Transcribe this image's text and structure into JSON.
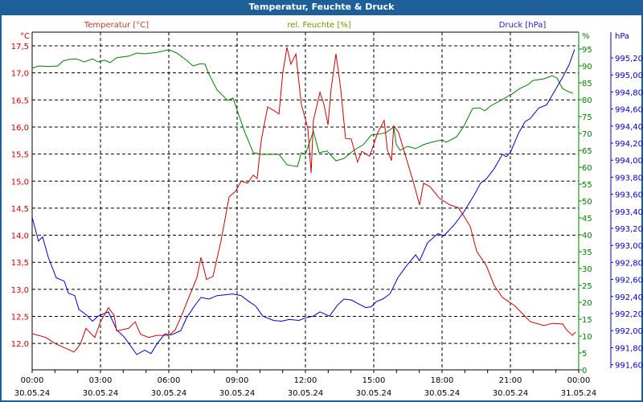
{
  "window": {
    "title": "Temperatur, Feuchte & Druck"
  },
  "colors": {
    "temperature": "#d00000",
    "humidity": "#008000",
    "pressure": "#0000d0",
    "titlebar": "#1f5f99"
  },
  "chart_data": {
    "type": "line",
    "title": "Temperatur, Feuchte & Druck",
    "xlabel": "",
    "x_unit": "hours since 30.05.24 00:00",
    "xlim": [
      0,
      24
    ],
    "x_ticks": [
      {
        "time": "00:00",
        "date": "30.05.24"
      },
      {
        "time": "03:00",
        "date": "30.05.24"
      },
      {
        "time": "06:00",
        "date": "30.05.24"
      },
      {
        "time": "09:00",
        "date": "30.05.24"
      },
      {
        "time": "12:00",
        "date": "30.05.24"
      },
      {
        "time": "15:00",
        "date": "30.05.24"
      },
      {
        "time": "18:00",
        "date": "30.05.24"
      },
      {
        "time": "21:00",
        "date": "30.05.24"
      },
      {
        "time": "00:00",
        "date": "31.05.24"
      }
    ],
    "grid": true,
    "axes": {
      "temperature": {
        "label": "Temperatur [°C]",
        "unit": "°C",
        "ylim": [
          11.75,
          17.75
        ],
        "ticks": [
          "17,5",
          "17,0",
          "16,5",
          "16,0",
          "15,5",
          "15,0",
          "14,5",
          "14,0",
          "13,5",
          "13,0",
          "12,5",
          "12,0"
        ]
      },
      "humidity": {
        "label": "rel. Feuchte [%]",
        "unit": "%",
        "ylim": [
          0,
          99
        ],
        "ticks": [
          "95",
          "90",
          "85",
          "80",
          "75",
          "70",
          "65",
          "60",
          "55",
          "50",
          "45",
          "40",
          "35",
          "30",
          "25",
          "20",
          "15",
          "10",
          "5",
          "0"
        ]
      },
      "pressure": {
        "label": "Druck [hPa]",
        "unit": "hPa",
        "ylim": [
          991.56,
          995.52
        ],
        "ticks": [
          "995,20",
          "995,00",
          "994,80",
          "994,60",
          "994,40",
          "994,20",
          "994,00",
          "993,80",
          "993,60",
          "993,40",
          "993,20",
          "993,00",
          "992,80",
          "992,60",
          "992,40",
          "992,20",
          "992,00",
          "991,80",
          "991,60"
        ]
      }
    },
    "series": [
      {
        "name": "Temperatur [°C]",
        "axis": "temperature",
        "points": [
          [
            0,
            12.18
          ],
          [
            0.6,
            12.11
          ],
          [
            1.0,
            12.0
          ],
          [
            1.84,
            11.84
          ],
          [
            2.12,
            11.99
          ],
          [
            2.36,
            12.28
          ],
          [
            2.75,
            12.11
          ],
          [
            3.0,
            12.4
          ],
          [
            3.35,
            12.66
          ],
          [
            3.6,
            12.52
          ],
          [
            3.71,
            12.23
          ],
          [
            4.24,
            12.28
          ],
          [
            4.52,
            12.4
          ],
          [
            4.76,
            12.17
          ],
          [
            5.12,
            12.11
          ],
          [
            5.47,
            12.15
          ],
          [
            6.0,
            12.15
          ],
          [
            6.28,
            12.25
          ],
          [
            6.53,
            12.48
          ],
          [
            6.88,
            12.85
          ],
          [
            7.24,
            13.22
          ],
          [
            7.41,
            13.59
          ],
          [
            7.66,
            13.18
          ],
          [
            7.94,
            13.24
          ],
          [
            8.29,
            13.89
          ],
          [
            8.65,
            14.71
          ],
          [
            8.93,
            14.81
          ],
          [
            9.18,
            15.0
          ],
          [
            9.46,
            14.96
          ],
          [
            9.71,
            15.11
          ],
          [
            9.88,
            15.05
          ],
          [
            10.06,
            15.75
          ],
          [
            10.34,
            16.37
          ],
          [
            10.59,
            16.31
          ],
          [
            10.84,
            16.24
          ],
          [
            11.01,
            17.01
          ],
          [
            11.19,
            17.47
          ],
          [
            11.36,
            17.16
          ],
          [
            11.58,
            17.35
          ],
          [
            11.82,
            16.42
          ],
          [
            12.11,
            15.97
          ],
          [
            12.25,
            15.15
          ],
          [
            12.35,
            16.12
          ],
          [
            12.64,
            16.64
          ],
          [
            12.81,
            16.42
          ],
          [
            12.99,
            16.04
          ],
          [
            13.13,
            16.71
          ],
          [
            13.34,
            17.35
          ],
          [
            13.55,
            16.71
          ],
          [
            13.76,
            15.79
          ],
          [
            14.01,
            15.78
          ],
          [
            14.29,
            15.35
          ],
          [
            14.47,
            15.55
          ],
          [
            14.82,
            15.46
          ],
          [
            15.18,
            15.9
          ],
          [
            15.46,
            16.12
          ],
          [
            15.6,
            15.57
          ],
          [
            15.78,
            15.38
          ],
          [
            15.88,
            16.02
          ],
          [
            16.09,
            15.9
          ],
          [
            16.41,
            15.45
          ],
          [
            16.73,
            15.0
          ],
          [
            17.01,
            14.56
          ],
          [
            17.19,
            14.96
          ],
          [
            17.47,
            14.9
          ],
          [
            17.89,
            14.68
          ],
          [
            18.35,
            14.56
          ],
          [
            18.71,
            14.51
          ],
          [
            18.95,
            14.36
          ],
          [
            19.24,
            14.16
          ],
          [
            19.52,
            13.7
          ],
          [
            19.94,
            13.44
          ],
          [
            20.29,
            13.07
          ],
          [
            20.65,
            12.85
          ],
          [
            21.18,
            12.7
          ],
          [
            21.53,
            12.55
          ],
          [
            21.88,
            12.4
          ],
          [
            22.48,
            12.33
          ],
          [
            22.84,
            12.37
          ],
          [
            23.29,
            12.36
          ],
          [
            23.47,
            12.25
          ],
          [
            23.72,
            12.15
          ],
          [
            23.86,
            12.21
          ]
        ]
      },
      {
        "name": "rel. Feuchte [%]",
        "axis": "humidity",
        "points": [
          [
            0,
            89.3
          ],
          [
            0.28,
            90.0
          ],
          [
            0.71,
            89.8
          ],
          [
            1.13,
            90.0
          ],
          [
            1.34,
            91.4
          ],
          [
            1.59,
            91.9
          ],
          [
            1.94,
            92.1
          ],
          [
            2.29,
            91.2
          ],
          [
            2.65,
            92.1
          ],
          [
            2.89,
            91.2
          ],
          [
            3.18,
            91.7
          ],
          [
            3.42,
            91.0
          ],
          [
            3.71,
            92.4
          ],
          [
            4.24,
            92.9
          ],
          [
            4.59,
            93.8
          ],
          [
            4.94,
            93.6
          ],
          [
            5.47,
            94.0
          ],
          [
            6.0,
            94.8
          ],
          [
            6.35,
            93.8
          ],
          [
            6.78,
            91.7
          ],
          [
            7.06,
            90.0
          ],
          [
            7.41,
            90.7
          ],
          [
            7.59,
            90.5
          ],
          [
            7.76,
            87.6
          ],
          [
            8.12,
            82.9
          ],
          [
            8.58,
            79.8
          ],
          [
            8.82,
            80.5
          ],
          [
            9.04,
            76.2
          ],
          [
            9.35,
            70.2
          ],
          [
            9.71,
            64.3
          ],
          [
            10.06,
            63.8
          ],
          [
            10.31,
            63.8
          ],
          [
            10.84,
            63.8
          ],
          [
            11.19,
            60.7
          ],
          [
            11.65,
            60.2
          ],
          [
            11.82,
            64.3
          ],
          [
            12.0,
            63.8
          ],
          [
            12.35,
            70.7
          ],
          [
            12.6,
            64.3
          ],
          [
            12.95,
            64.8
          ],
          [
            13.34,
            61.9
          ],
          [
            13.69,
            62.6
          ],
          [
            14.12,
            65.0
          ],
          [
            14.54,
            66.7
          ],
          [
            14.89,
            69.5
          ],
          [
            15.53,
            70.2
          ],
          [
            15.88,
            71.9
          ],
          [
            15.99,
            66.7
          ],
          [
            16.16,
            65.0
          ],
          [
            16.48,
            66.2
          ],
          [
            16.84,
            65.5
          ],
          [
            17.19,
            66.7
          ],
          [
            17.54,
            67.4
          ],
          [
            18.0,
            68.1
          ],
          [
            18.18,
            67.4
          ],
          [
            18.64,
            69.0
          ],
          [
            18.95,
            72.1
          ],
          [
            19.34,
            77.4
          ],
          [
            19.66,
            77.6
          ],
          [
            19.87,
            76.7
          ],
          [
            20.12,
            78.1
          ],
          [
            20.58,
            79.8
          ],
          [
            21.07,
            81.7
          ],
          [
            21.42,
            83.3
          ],
          [
            21.78,
            84.5
          ],
          [
            21.99,
            85.7
          ],
          [
            22.48,
            86.2
          ],
          [
            22.84,
            87.1
          ],
          [
            23.05,
            86.4
          ],
          [
            23.29,
            83.3
          ],
          [
            23.54,
            82.4
          ],
          [
            23.75,
            81.9
          ]
        ]
      },
      {
        "name": "Druck [hPa]",
        "axis": "pressure",
        "points": [
          [
            0,
            993.33
          ],
          [
            0.28,
            993.05
          ],
          [
            0.46,
            993.1
          ],
          [
            0.71,
            992.86
          ],
          [
            1.06,
            992.62
          ],
          [
            1.41,
            992.58
          ],
          [
            1.59,
            992.44
          ],
          [
            1.87,
            992.41
          ],
          [
            2.05,
            992.25
          ],
          [
            2.4,
            992.18
          ],
          [
            2.65,
            992.11
          ],
          [
            2.89,
            992.17
          ],
          [
            3.35,
            992.22
          ],
          [
            3.71,
            992.01
          ],
          [
            4.06,
            991.92
          ],
          [
            4.59,
            991.72
          ],
          [
            4.94,
            991.77
          ],
          [
            5.22,
            991.73
          ],
          [
            5.47,
            991.84
          ],
          [
            5.82,
            991.96
          ],
          [
            6.11,
            991.95
          ],
          [
            6.53,
            992.0
          ],
          [
            6.78,
            992.15
          ],
          [
            7.13,
            992.29
          ],
          [
            7.41,
            992.39
          ],
          [
            7.76,
            992.37
          ],
          [
            8.12,
            992.41
          ],
          [
            8.82,
            992.43
          ],
          [
            9.18,
            992.41
          ],
          [
            9.53,
            992.34
          ],
          [
            9.81,
            992.29
          ],
          [
            10.13,
            992.17
          ],
          [
            10.59,
            992.12
          ],
          [
            10.94,
            992.11
          ],
          [
            11.29,
            992.13
          ],
          [
            11.72,
            992.12
          ],
          [
            12.0,
            992.15
          ],
          [
            12.35,
            992.17
          ],
          [
            12.64,
            992.22
          ],
          [
            13.06,
            992.17
          ],
          [
            13.41,
            992.3
          ],
          [
            13.69,
            992.37
          ],
          [
            14.01,
            992.36
          ],
          [
            14.29,
            992.32
          ],
          [
            14.65,
            992.27
          ],
          [
            14.89,
            992.28
          ],
          [
            15.11,
            992.34
          ],
          [
            15.39,
            992.37
          ],
          [
            15.71,
            992.43
          ],
          [
            16.06,
            992.62
          ],
          [
            16.41,
            992.75
          ],
          [
            16.84,
            992.89
          ],
          [
            17.01,
            992.82
          ],
          [
            17.36,
            993.03
          ],
          [
            17.82,
            993.14
          ],
          [
            18.07,
            993.11
          ],
          [
            18.53,
            993.24
          ],
          [
            18.95,
            993.39
          ],
          [
            19.41,
            993.59
          ],
          [
            19.69,
            993.73
          ],
          [
            19.94,
            993.78
          ],
          [
            20.29,
            993.9
          ],
          [
            20.65,
            994.07
          ],
          [
            20.82,
            994.04
          ],
          [
            21.0,
            994.09
          ],
          [
            21.35,
            994.31
          ],
          [
            21.64,
            994.45
          ],
          [
            21.88,
            994.49
          ],
          [
            22.24,
            994.61
          ],
          [
            22.59,
            994.65
          ],
          [
            22.94,
            994.81
          ],
          [
            23.29,
            994.97
          ],
          [
            23.58,
            995.12
          ],
          [
            23.82,
            995.3
          ]
        ]
      }
    ]
  }
}
